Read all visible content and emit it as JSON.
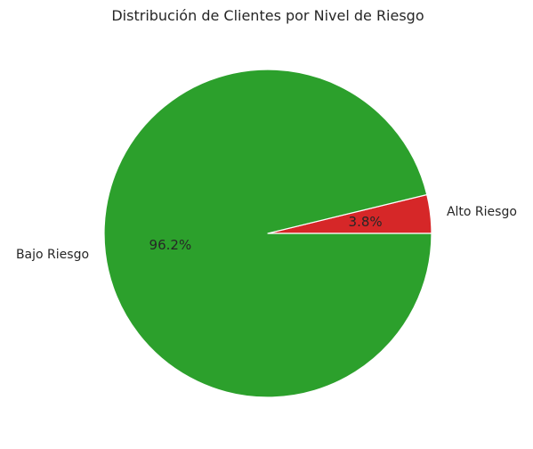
{
  "chart_data": {
    "type": "pie",
    "title": "Distribución de Clientes por Nivel de Riesgo",
    "slices": [
      {
        "label": "Alto Riesgo",
        "value": 3.8,
        "pct_label": "3.8%",
        "color": "#d62728"
      },
      {
        "label": "Bajo Riesgo",
        "value": 96.2,
        "pct_label": "96.2%",
        "color": "#2ca02c"
      }
    ],
    "start_angle_deg": 0,
    "direction": "counterclockwise",
    "wedge_edge_color": "#ffffff"
  }
}
